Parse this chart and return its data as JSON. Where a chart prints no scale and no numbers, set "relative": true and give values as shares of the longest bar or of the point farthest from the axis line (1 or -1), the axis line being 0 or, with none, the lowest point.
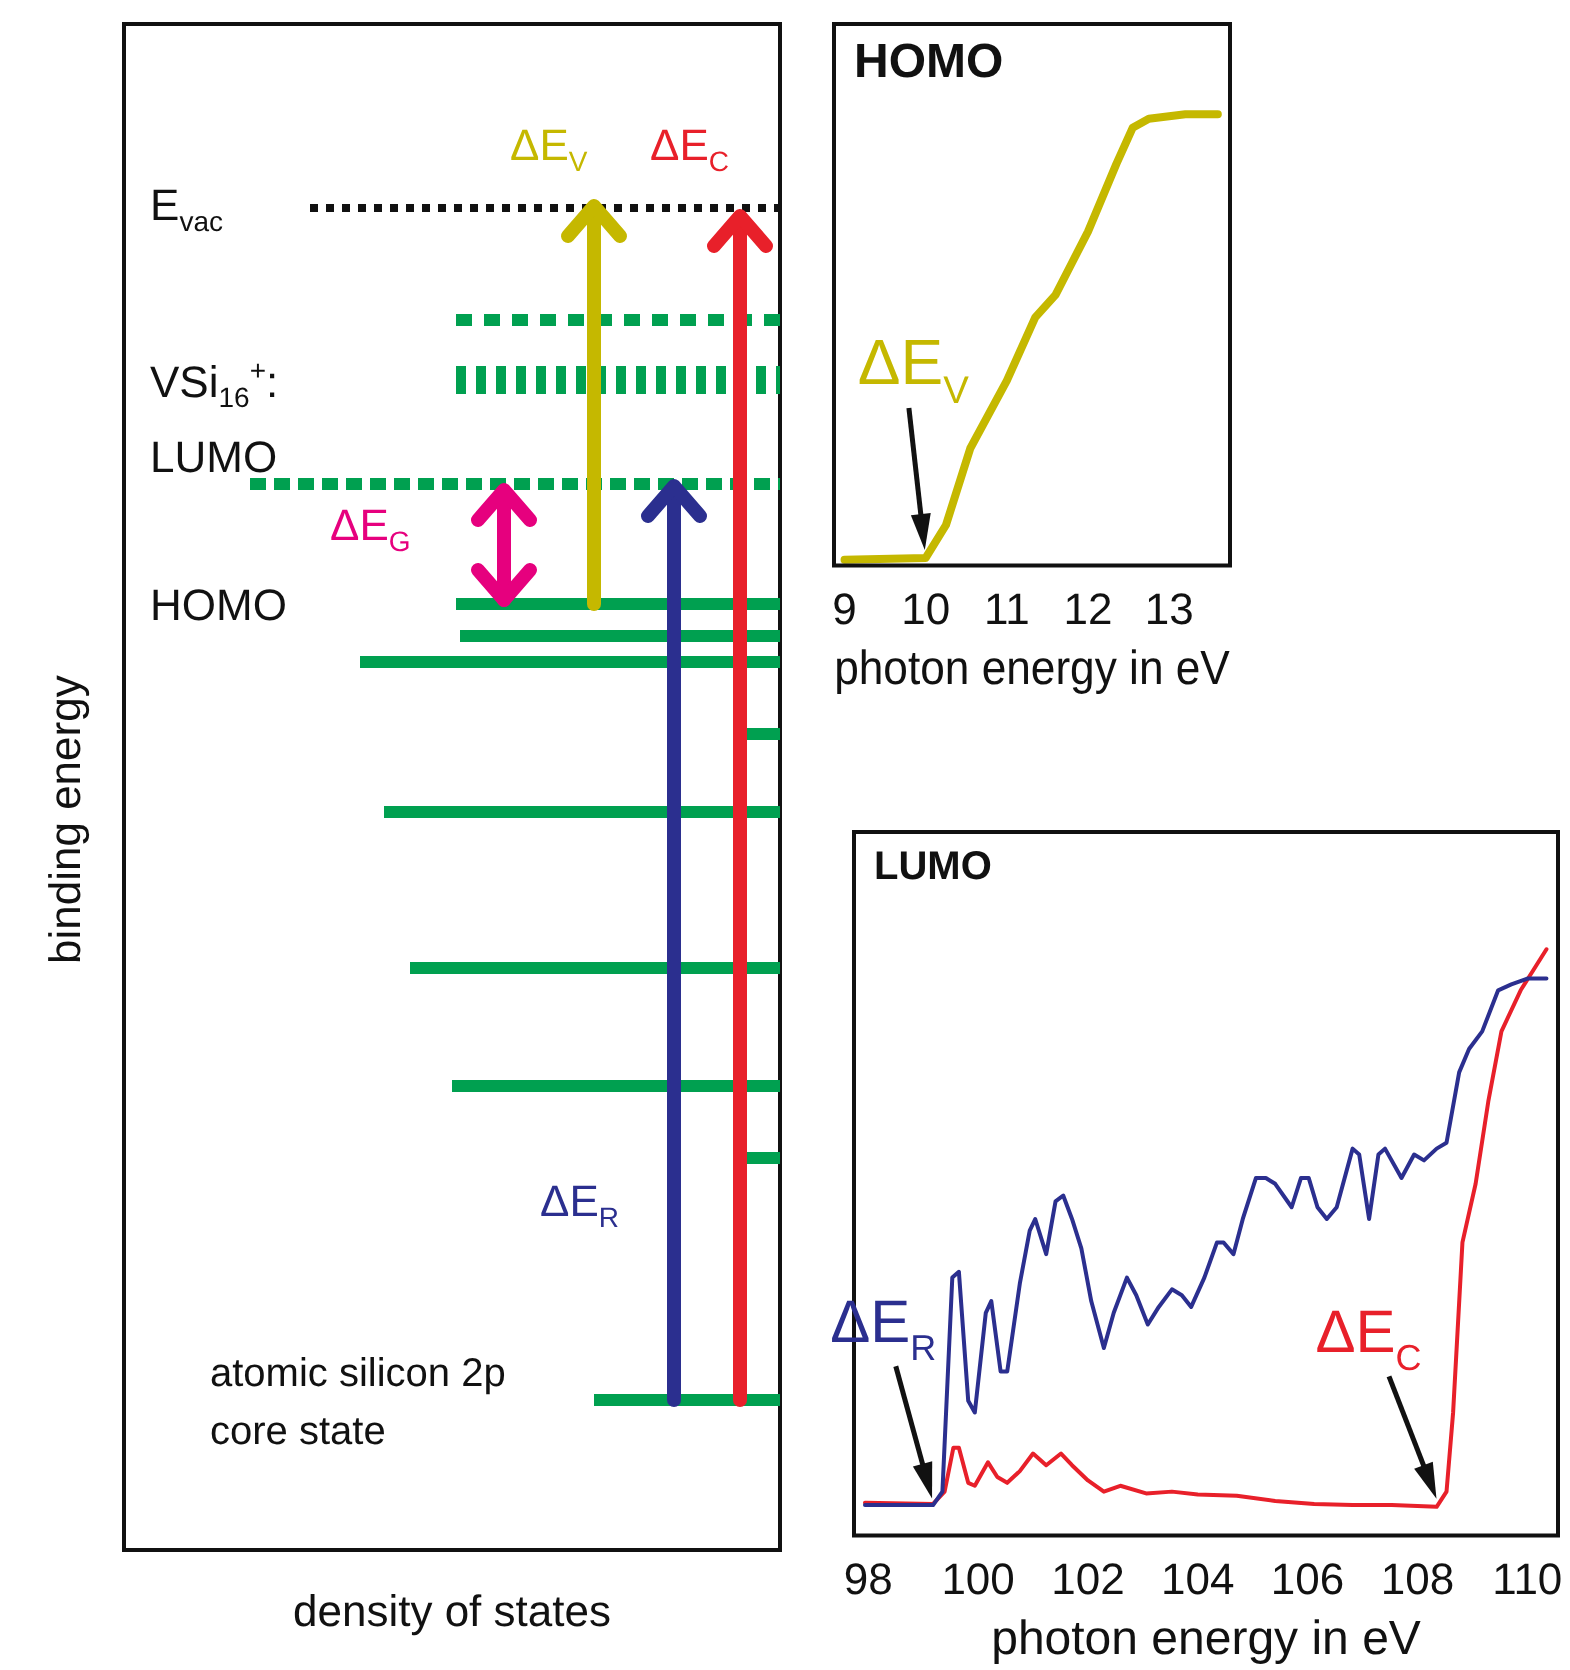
{
  "chart_data": [
    {
      "type": "other",
      "xlabel": "density of states",
      "ylabel": "binding energy",
      "annotations": [
        "E$_{vac}$",
        "VSi$_{16}$$^{+}$:",
        "LUMO",
        "HOMO",
        "ΔE$_{G}$",
        "ΔE$_{V}$",
        "ΔE$_{C}$",
        "ΔE$_{R}$",
        "atomic silicon 2p",
        "core state"
      ]
    },
    {
      "type": "line",
      "title": "HOMO",
      "xlabel": "photon energy in eV",
      "relative": true,
      "xlim": [
        8.87,
        13.75
      ],
      "xticks": [
        9,
        10,
        11,
        12,
        13
      ],
      "series": [
        {
          "color": "#c5b800",
          "x": [
            9.0,
            10.0,
            10.25,
            10.55,
            11.0,
            11.35,
            11.6,
            11.8,
            12.0,
            12.35,
            12.55,
            12.75,
            13.2,
            13.6
          ],
          "values": [
            0.013,
            0.017,
            0.09,
            0.26,
            0.41,
            0.55,
            0.6,
            0.67,
            0.74,
            0.89,
            0.97,
            0.99,
            1.0,
            1.0
          ]
        }
      ],
      "annotations": [
        {
          "text": "ΔE$_{V}$",
          "x": 10.0,
          "y": 0.017
        }
      ]
    },
    {
      "type": "line",
      "title": "LUMO",
      "xlabel": "photon energy in eV",
      "relative": true,
      "xlim": [
        97.74,
        110.56
      ],
      "xticks": [
        98,
        100,
        102,
        104,
        106,
        108,
        110
      ],
      "series": [
        {
          "color": "#2b2f8f",
          "x": [
            97.94,
            99.18,
            99.35,
            99.53,
            99.65,
            99.82,
            99.94,
            100.14,
            100.24,
            100.41,
            100.53,
            100.76,
            100.94,
            101.04,
            101.24,
            101.41,
            101.55,
            101.71,
            101.88,
            102.06,
            102.29,
            102.47,
            102.71,
            102.88,
            103.09,
            103.29,
            103.53,
            103.71,
            103.88,
            104.12,
            104.35,
            104.47,
            104.65,
            104.82,
            105.06,
            105.24,
            105.41,
            105.71,
            105.88,
            106.02,
            106.18,
            106.35,
            106.53,
            106.82,
            106.94,
            107.12,
            107.29,
            107.41,
            107.71,
            107.94,
            108.12,
            108.35,
            108.53,
            108.76,
            108.94,
            109.18,
            109.47,
            109.71,
            110.0,
            110.35
          ],
          "values": [
            0.052,
            0.052,
            0.075,
            0.44,
            0.45,
            0.23,
            0.21,
            0.38,
            0.4,
            0.28,
            0.28,
            0.43,
            0.52,
            0.54,
            0.48,
            0.57,
            0.58,
            0.54,
            0.49,
            0.4,
            0.32,
            0.38,
            0.44,
            0.41,
            0.36,
            0.39,
            0.42,
            0.41,
            0.39,
            0.44,
            0.5,
            0.5,
            0.48,
            0.54,
            0.61,
            0.61,
            0.6,
            0.56,
            0.61,
            0.61,
            0.56,
            0.54,
            0.56,
            0.66,
            0.65,
            0.54,
            0.65,
            0.66,
            0.61,
            0.65,
            0.64,
            0.66,
            0.67,
            0.79,
            0.83,
            0.86,
            0.93,
            0.94,
            0.95,
            0.95
          ]
        },
        {
          "color": "#e8202a",
          "x": [
            97.94,
            99.18,
            99.39,
            99.55,
            99.65,
            99.82,
            99.94,
            100.18,
            100.35,
            100.53,
            100.76,
            101.0,
            101.24,
            101.51,
            101.71,
            102.0,
            102.29,
            102.59,
            103.06,
            103.53,
            104.0,
            104.71,
            105.41,
            106.12,
            106.82,
            107.53,
            108.35,
            108.53,
            108.65,
            108.82,
            109.06,
            109.29,
            109.53,
            109.88,
            110.35
          ],
          "values": [
            0.056,
            0.054,
            0.075,
            0.15,
            0.15,
            0.09,
            0.085,
            0.125,
            0.1,
            0.09,
            0.11,
            0.14,
            0.12,
            0.14,
            0.12,
            0.094,
            0.075,
            0.085,
            0.072,
            0.075,
            0.07,
            0.068,
            0.059,
            0.054,
            0.052,
            0.052,
            0.049,
            0.075,
            0.21,
            0.5,
            0.6,
            0.74,
            0.86,
            0.93,
            1.0
          ]
        }
      ],
      "annotations": [
        {
          "text": "ΔE$_{R}$",
          "x": 99.2,
          "y": 0.05
        },
        {
          "text": "ΔE$_{C}$",
          "x": 108.4,
          "y": 0.05
        }
      ]
    }
  ]
}
